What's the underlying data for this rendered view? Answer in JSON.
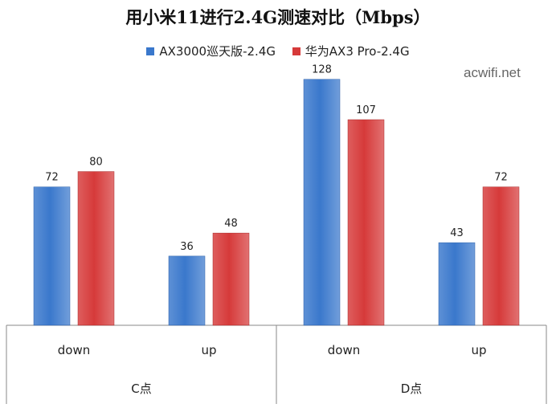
{
  "watermark": "acwifi.net",
  "colors": {
    "series1": "#3a78cc",
    "series2": "#d63a3a"
  },
  "chart_data": {
    "type": "bar",
    "title": "用小米11进行2.4G测速对比（Mbps）",
    "groups": [
      {
        "label": "C点",
        "categories": [
          "down",
          "up"
        ]
      },
      {
        "label": "D点",
        "categories": [
          "down",
          "up"
        ]
      }
    ],
    "categories": [
      "down",
      "up",
      "down",
      "up"
    ],
    "series": [
      {
        "name": "AX3000巡天版-2.4G",
        "values": [
          72,
          36,
          128,
          43
        ]
      },
      {
        "name": "华为AX3 Pro-2.4G",
        "values": [
          80,
          48,
          107,
          72
        ]
      }
    ],
    "legend_position": "top",
    "data_labels": true,
    "grid": false,
    "ylim": [
      0,
      135
    ]
  }
}
